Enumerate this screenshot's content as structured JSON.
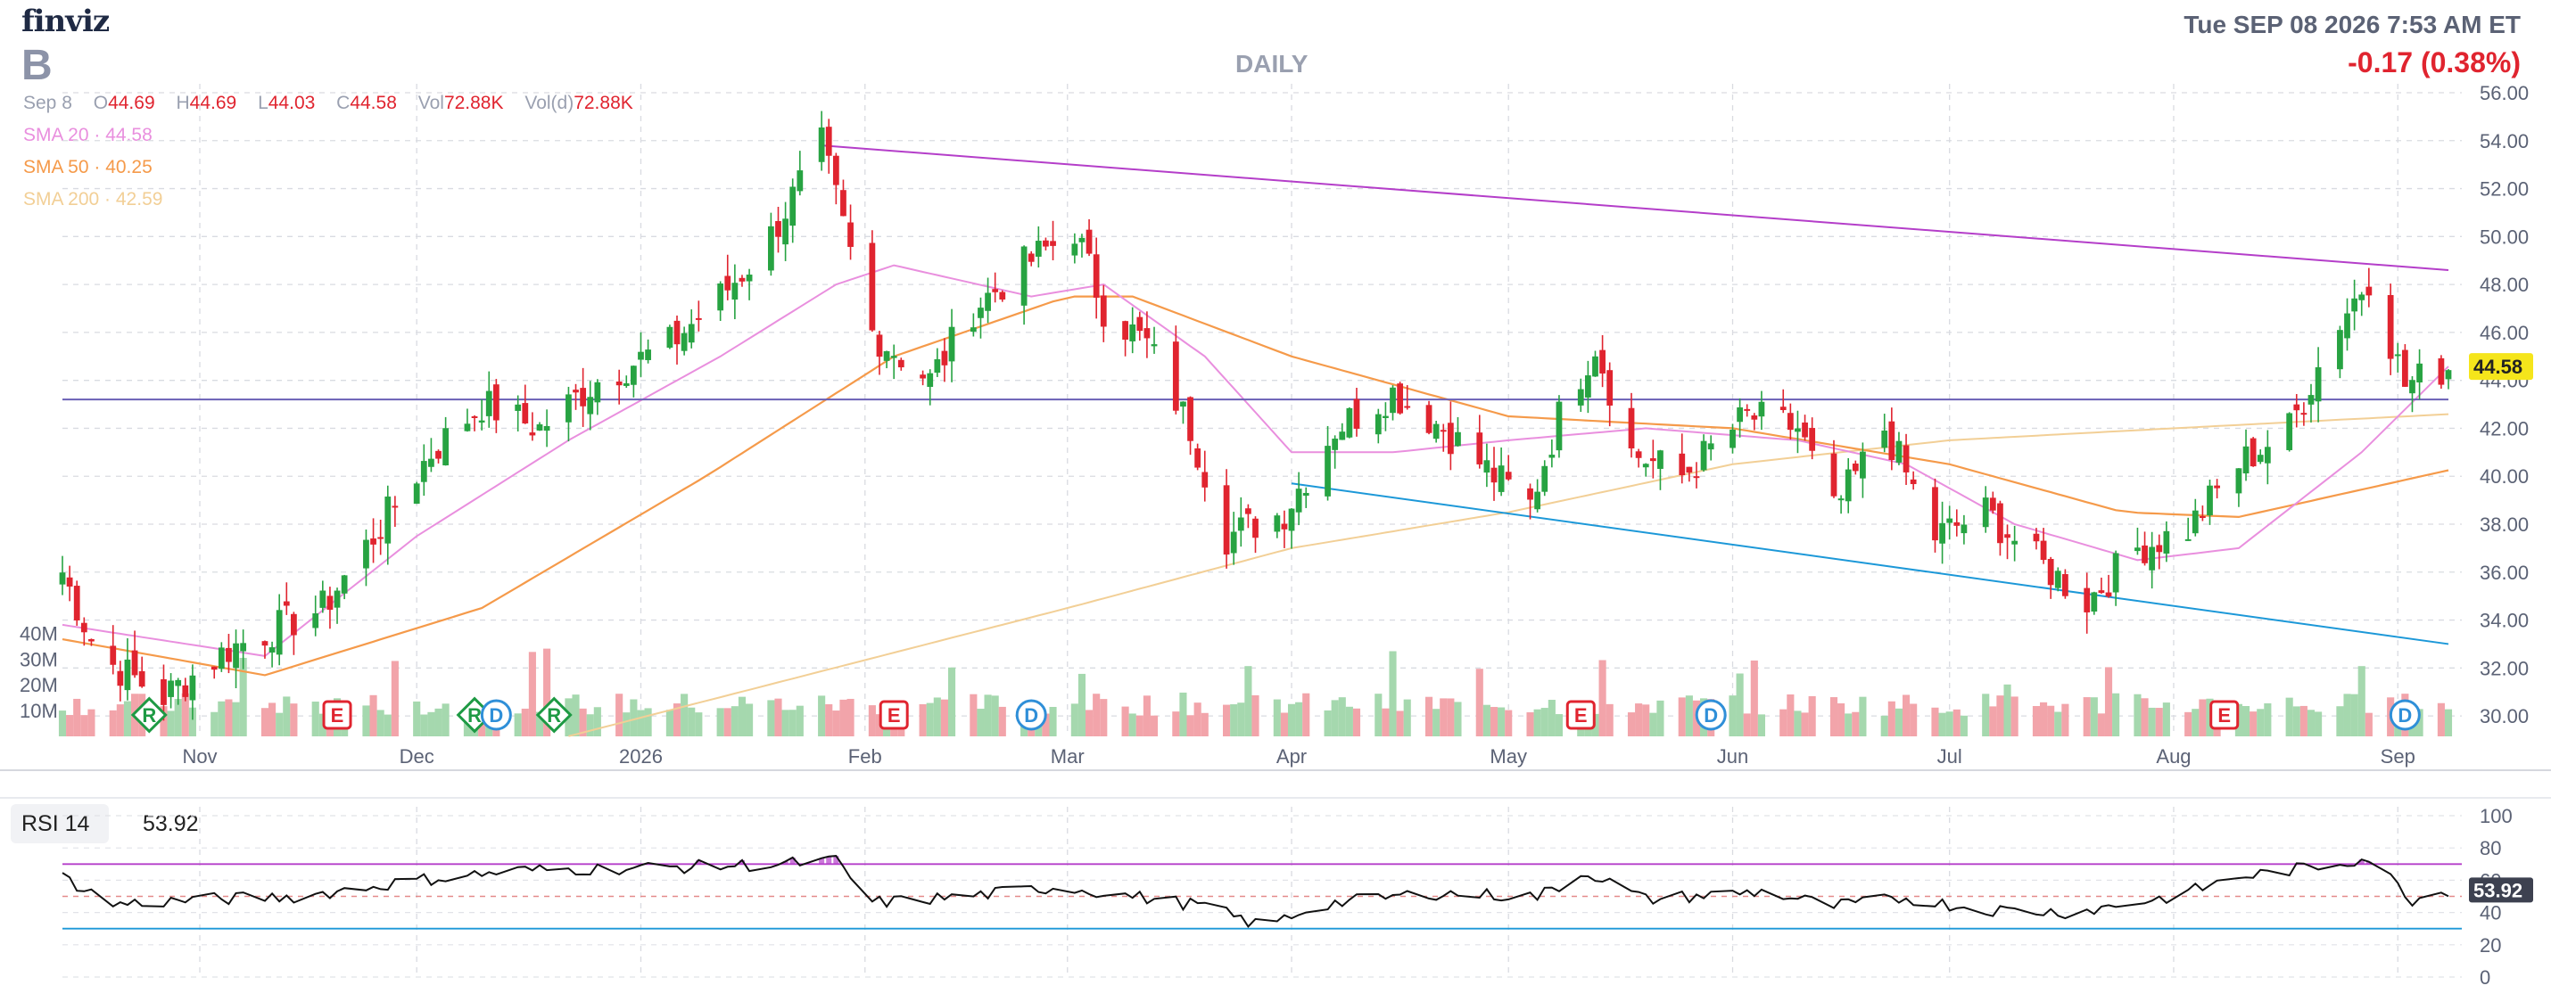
{
  "header": {
    "logo": "finviz",
    "ticker": "B",
    "timeframe": "DAILY",
    "datetime": "Tue SEP 08 2026 7:53 AM ET",
    "change": "-0.17 (0.38%)"
  },
  "ohlc": {
    "date": "Sep 8",
    "open_label": "O",
    "open": "44.69",
    "high_label": "H",
    "high": "44.69",
    "low_label": "L",
    "low": "44.03",
    "close_label": "C",
    "close": "44.58",
    "vol_label": "Vol",
    "vol": "72.88K",
    "vold_label": "Vol(d)",
    "vold": "72.88K"
  },
  "indicators": {
    "sma20": "SMA 20 · 44.58",
    "sma50": "SMA 50 · 40.25",
    "sma200": "SMA 200 · 42.59"
  },
  "rsi": {
    "label": "RSI 14",
    "value": "53.92"
  },
  "colors": {
    "up": "#27a342",
    "down": "#e0242f",
    "vol_up": "#a5d8ae",
    "vol_down": "#f2a4aa",
    "sma20": "#e98fde",
    "sma50": "#f59a4a",
    "sma200": "#f2cf96",
    "resistance": "#b43ec9",
    "support": "#1c98d8",
    "horizontal": "#6a5fb5",
    "price_tag": "#f5e51b"
  },
  "chart_data": [
    {
      "type": "candlestick",
      "title": "",
      "last_price_label": "44.58",
      "y_range": [
        29,
        56
      ],
      "y_ticks": [
        "56.00",
        "54.00",
        "52.00",
        "50.00",
        "48.00",
        "46.00",
        "44.00",
        "42.00",
        "40.00",
        "38.00",
        "36.00",
        "34.00",
        "32.00",
        "30.00"
      ],
      "x_ticks": [
        "Nov",
        "Dec",
        "2026",
        "Feb",
        "Mar",
        "Apr",
        "May",
        "Jun",
        "Jul",
        "Aug",
        "Sep"
      ],
      "x_range": [
        "2025-10-13",
        "2026-09-08"
      ],
      "volume_ticks": [
        "40M",
        "30M",
        "20M",
        "10M"
      ],
      "volume_range_millions": [
        0,
        45
      ],
      "anchors": [
        [
          "2025-10-13",
          36.0
        ],
        [
          "2025-10-18",
          32.5
        ],
        [
          "2025-10-27",
          30.8
        ],
        [
          "2025-11-05",
          32.8
        ],
        [
          "2025-11-18",
          34.5
        ],
        [
          "2025-11-25",
          37.5
        ],
        [
          "2025-12-03",
          41.0
        ],
        [
          "2025-12-10",
          43.0
        ],
        [
          "2025-12-18",
          42.0
        ],
        [
          "2025-12-26",
          44.0
        ],
        [
          "2026-01-05",
          45.5
        ],
        [
          "2026-01-12",
          47.5
        ],
        [
          "2026-01-18",
          49.5
        ],
        [
          "2026-01-26",
          53.8
        ],
        [
          "2026-02-02",
          46.0
        ],
        [
          "2026-02-10",
          44.0
        ],
        [
          "2026-02-16",
          47.0
        ],
        [
          "2026-02-23",
          48.8
        ],
        [
          "2026-03-02",
          50.3
        ],
        [
          "2026-03-06",
          47.0
        ],
        [
          "2026-03-12",
          45.5
        ],
        [
          "2026-03-18",
          42.0
        ],
        [
          "2026-03-23",
          37.5
        ],
        [
          "2026-03-31",
          38.5
        ],
        [
          "2026-04-07",
          42.0
        ],
        [
          "2026-04-15",
          43.5
        ],
        [
          "2026-04-22",
          42.0
        ],
        [
          "2026-04-29",
          40.0
        ],
        [
          "2026-05-04",
          38.8
        ],
        [
          "2026-05-08",
          42.5
        ],
        [
          "2026-05-13",
          45.5
        ],
        [
          "2026-05-18",
          41.0
        ],
        [
          "2026-05-25",
          40.0
        ],
        [
          "2026-06-03",
          42.5
        ],
        [
          "2026-06-10",
          42.0
        ],
        [
          "2026-06-15",
          38.5
        ],
        [
          "2026-06-22",
          42.0
        ],
        [
          "2026-06-29",
          37.5
        ],
        [
          "2026-07-06",
          38.5
        ],
        [
          "2026-07-13",
          36.5
        ],
        [
          "2026-07-20",
          34.8
        ],
        [
          "2026-07-27",
          37.0
        ],
        [
          "2026-08-03",
          37.8
        ],
        [
          "2026-08-10",
          40.5
        ],
        [
          "2026-08-17",
          42.0
        ],
        [
          "2026-08-24",
          46.5
        ],
        [
          "2026-08-28",
          48.3
        ],
        [
          "2026-09-02",
          43.8
        ],
        [
          "2026-09-08",
          44.58
        ]
      ],
      "sma20": [
        [
          "2025-10-13",
          33.8
        ],
        [
          "2025-11-10",
          32.5
        ],
        [
          "2025-12-01",
          37.5
        ],
        [
          "2025-12-22",
          41.5
        ],
        [
          "2026-01-12",
          45.0
        ],
        [
          "2026-01-28",
          48.0
        ],
        [
          "2026-02-05",
          48.8
        ],
        [
          "2026-02-24",
          47.5
        ],
        [
          "2026-03-06",
          48.0
        ],
        [
          "2026-03-20",
          45.0
        ],
        [
          "2026-04-01",
          41.0
        ],
        [
          "2026-04-15",
          41.0
        ],
        [
          "2026-05-01",
          41.5
        ],
        [
          "2026-05-20",
          42.0
        ],
        [
          "2026-06-10",
          41.5
        ],
        [
          "2026-06-25",
          40.5
        ],
        [
          "2026-07-10",
          38.0
        ],
        [
          "2026-07-27",
          36.5
        ],
        [
          "2026-08-10",
          37.0
        ],
        [
          "2026-08-27",
          41.0
        ],
        [
          "2026-09-08",
          44.58
        ]
      ],
      "sma50": [
        [
          "2025-10-13",
          33.2
        ],
        [
          "2025-11-10",
          31.7
        ],
        [
          "2025-12-10",
          34.5
        ],
        [
          "2026-01-10",
          40.0
        ],
        [
          "2026-02-05",
          45.0
        ],
        [
          "2026-03-01",
          47.5
        ],
        [
          "2026-03-10",
          47.5
        ],
        [
          "2026-04-01",
          45.0
        ],
        [
          "2026-05-01",
          42.5
        ],
        [
          "2026-06-01",
          42.0
        ],
        [
          "2026-07-01",
          40.5
        ],
        [
          "2026-07-25",
          38.5
        ],
        [
          "2026-08-10",
          38.3
        ],
        [
          "2026-09-08",
          40.25
        ]
      ],
      "sma200": [
        [
          "2025-12-20",
          29.0
        ],
        [
          "2026-03-01",
          34.5
        ],
        [
          "2026-04-01",
          37.0
        ],
        [
          "2026-05-01",
          38.5
        ],
        [
          "2026-06-01",
          40.5
        ],
        [
          "2026-07-01",
          41.5
        ],
        [
          "2026-08-01",
          42.0
        ],
        [
          "2026-09-08",
          42.59
        ]
      ],
      "trendlines": [
        {
          "name": "resistance",
          "from": [
            "2026-01-26",
            53.8
          ],
          "to": [
            "2026-09-08",
            48.6
          ]
        },
        {
          "name": "support",
          "from": [
            "2026-04-01",
            39.7
          ],
          "to": [
            "2026-09-08",
            33.0
          ]
        },
        {
          "name": "horizontal",
          "from": [
            "2025-10-13",
            43.2
          ],
          "to": [
            "2026-09-08",
            43.2
          ]
        }
      ],
      "events": [
        {
          "date": "2025-10-25",
          "letter": "R",
          "kind": "diamond"
        },
        {
          "date": "2025-11-20",
          "letter": "E",
          "kind": "square"
        },
        {
          "date": "2025-12-09",
          "letter": "R",
          "kind": "diamond"
        },
        {
          "date": "2025-12-12",
          "letter": "D",
          "kind": "circle"
        },
        {
          "date": "2025-12-20",
          "letter": "R",
          "kind": "diamond"
        },
        {
          "date": "2026-02-05",
          "letter": "E",
          "kind": "square"
        },
        {
          "date": "2026-02-24",
          "letter": "D",
          "kind": "circle"
        },
        {
          "date": "2026-05-11",
          "letter": "E",
          "kind": "square"
        },
        {
          "date": "2026-05-29",
          "letter": "D",
          "kind": "circle"
        },
        {
          "date": "2026-08-08",
          "letter": "E",
          "kind": "square"
        },
        {
          "date": "2026-09-02",
          "letter": "D",
          "kind": "circle"
        }
      ]
    },
    {
      "type": "line",
      "title": "RSI 14",
      "last_value_label": "53.92",
      "y_range": [
        0,
        100
      ],
      "y_ticks": [
        "100",
        "80",
        "60",
        "40",
        "20",
        "0"
      ],
      "overbought": 70,
      "oversold": 30,
      "midline": 50,
      "anchors": [
        [
          "2025-10-13",
          62
        ],
        [
          "2025-10-20",
          45
        ],
        [
          "2025-11-01",
          48
        ],
        [
          "2025-11-15",
          50
        ],
        [
          "2025-12-01",
          60
        ],
        [
          "2025-12-15",
          66
        ],
        [
          "2026-01-05",
          68
        ],
        [
          "2026-01-20",
          70
        ],
        [
          "2026-01-28",
          72
        ],
        [
          "2026-02-02",
          46
        ],
        [
          "2026-02-15",
          50
        ],
        [
          "2026-02-28",
          56
        ],
        [
          "2026-03-10",
          50
        ],
        [
          "2026-03-20",
          44
        ],
        [
          "2026-03-28",
          31
        ],
        [
          "2026-04-05",
          45
        ],
        [
          "2026-04-20",
          52
        ],
        [
          "2026-05-05",
          50
        ],
        [
          "2026-05-12",
          65
        ],
        [
          "2026-05-20",
          48
        ],
        [
          "2026-06-05",
          53
        ],
        [
          "2026-06-15",
          44
        ],
        [
          "2026-06-25",
          49
        ],
        [
          "2026-07-05",
          42
        ],
        [
          "2026-07-18",
          40
        ],
        [
          "2026-08-01",
          50
        ],
        [
          "2026-08-10",
          62
        ],
        [
          "2026-08-20",
          68
        ],
        [
          "2026-08-28",
          74
        ],
        [
          "2026-09-03",
          48
        ],
        [
          "2026-09-08",
          53.92
        ]
      ]
    }
  ]
}
